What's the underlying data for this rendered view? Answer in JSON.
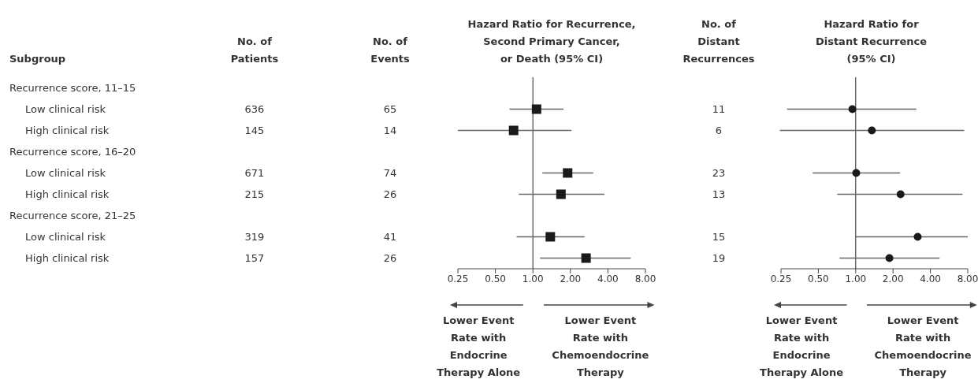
{
  "chart_data": [
    {
      "type": "other",
      "ylabel": "Subgroup",
      "categories": [
        "Recurrence score, 11–15",
        "Low clinical risk",
        "High clinical risk",
        "Recurrence score, 16–20",
        "Low clinical risk",
        "High clinical risk",
        "Recurrence score, 21–25",
        "Low clinical risk",
        "High clinical risk"
      ],
      "data_labels": true,
      "series": [
        {
          "name": "No. of\nPatients",
          "values": [
            null,
            636,
            145,
            null,
            671,
            215,
            null,
            319,
            157
          ]
        },
        {
          "name": "No. of\nEvents",
          "values": [
            null,
            65,
            14,
            null,
            74,
            26,
            null,
            41,
            26
          ]
        }
      ]
    },
    {
      "type": "scatter",
      "orientation": "horizontal",
      "title": "Hazard Ratio for Recurrence,\nSecond Primary Cancer,\nor Death (95% CI)",
      "categories": [
        null,
        null,
        null,
        null,
        null,
        null,
        null,
        null,
        null
      ],
      "marker": "square",
      "color": "#1a1a1a",
      "tick_labels": "x",
      "log": "x",
      "xlim": [
        0.25,
        8
      ],
      "xticks": [
        0.25,
        {
          "value": 0.5,
          "label": "0.50"
        },
        {
          "value": 1,
          "label": "1.00"
        },
        {
          "value": 2,
          "label": "2.00"
        },
        {
          "value": 4,
          "label": "4.00"
        },
        {
          "value": 8,
          "label": "8.00"
        }
      ],
      "values": [
        null,
        1.07,
        0.7,
        null,
        1.9,
        1.68,
        null,
        1.38,
        2.67
      ],
      "errors": [
        null,
        [
          0.65,
          1.76
        ],
        [
          0.25,
          2.04
        ],
        null,
        [
          1.19,
          3.05
        ],
        [
          0.77,
          3.75
        ],
        null,
        [
          0.74,
          2.6
        ],
        [
          1.14,
          6.1
        ]
      ],
      "ref_lines": [
        {
          "axis": "x",
          "value": 1
        }
      ],
      "annotations": [
        "Lower Event\nRate with\nEndocrine\nTherapy Alone",
        "Lower Event\nRate with\nChemoendocrine\nTherapy"
      ]
    },
    {
      "type": "other",
      "categories": [
        null,
        null,
        null,
        null,
        null,
        null,
        null,
        null,
        null
      ],
      "data_labels": true,
      "series": [
        {
          "name": "No. of\nDistant\nRecurrences",
          "values": [
            null,
            11,
            6,
            null,
            23,
            13,
            null,
            15,
            19
          ]
        }
      ]
    },
    {
      "type": "scatter",
      "orientation": "horizontal",
      "title": "Hazard Ratio for\nDistant Recurrence\n(95% CI)",
      "categories": [
        null,
        null,
        null,
        null,
        null,
        null,
        null,
        null,
        null
      ],
      "marker": "circle",
      "color": "#1a1a1a",
      "tick_labels": "x",
      "log": "x",
      "xlim": [
        0.25,
        8
      ],
      "xticks": [
        0.25,
        {
          "value": 0.5,
          "label": "0.50"
        },
        {
          "value": 1,
          "label": "1.00"
        },
        {
          "value": 2,
          "label": "2.00"
        },
        {
          "value": 4,
          "label": "4.00"
        },
        {
          "value": 8,
          "label": "8.00"
        }
      ],
      "values": [
        null,
        0.94,
        1.35,
        null,
        1.01,
        2.3,
        null,
        3.16,
        1.87
      ],
      "errors": [
        null,
        [
          0.28,
          3.08
        ],
        [
          0.245,
          7.5
        ],
        null,
        [
          0.45,
          2.28
        ],
        [
          0.71,
          7.25
        ],
        null,
        [
          1.0,
          8
        ],
        [
          0.74,
          4.74
        ]
      ],
      "ref_lines": [
        {
          "axis": "x",
          "value": 1
        }
      ],
      "annotations": [
        "Lower Event\nRate with\nEndocrine\nTherapy Alone",
        "Lower Event\nRate with\nChemoendocrine\nTherapy"
      ]
    }
  ]
}
